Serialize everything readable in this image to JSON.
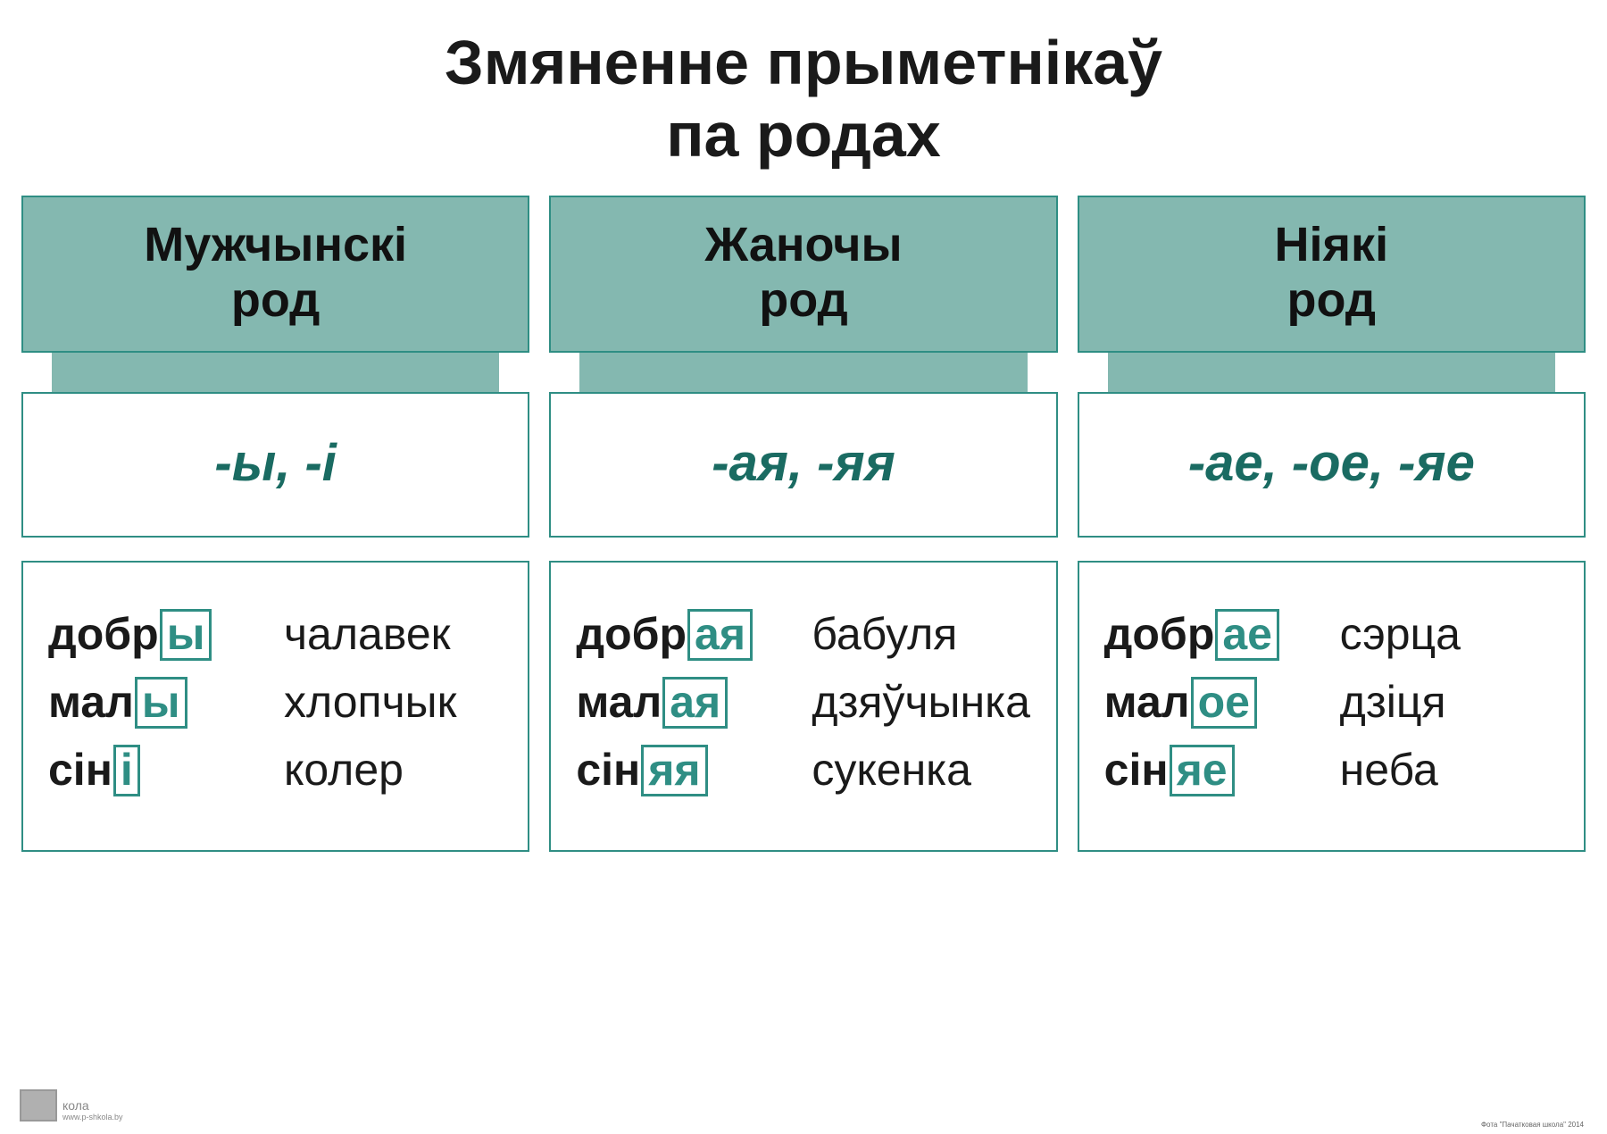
{
  "colors": {
    "accent": "#2f8e84",
    "header_bg": "#84b8b0",
    "endings_text": "#1a6b62",
    "text": "#1a1a1a",
    "background": "#ffffff"
  },
  "title_line1": "Змяненне прыметнікаў",
  "title_line2": "па родах",
  "columns": [
    {
      "header_line1": "Мужчынскі",
      "header_line2": "род",
      "endings": "-ы, -і",
      "examples": [
        {
          "stem": "добр",
          "suffix": "ы",
          "noun": "чалавек"
        },
        {
          "stem": "мал",
          "suffix": "ы",
          "noun": "хлопчык"
        },
        {
          "stem": "сін",
          "suffix": "і",
          "noun": "колер"
        }
      ]
    },
    {
      "header_line1": "Жаночы",
      "header_line2": "род",
      "endings": "-ая, -яя",
      "examples": [
        {
          "stem": "добр",
          "suffix": "ая",
          "noun": "бабуля"
        },
        {
          "stem": "мал",
          "suffix": "ая",
          "noun": "дзяўчынка"
        },
        {
          "stem": "сін",
          "suffix": "яя",
          "noun": "сукенка"
        }
      ]
    },
    {
      "header_line1": "Ніякі",
      "header_line2": "род",
      "endings": "-ае, -ое, -яе",
      "examples": [
        {
          "stem": "добр",
          "suffix": "ае",
          "noun": "сэрца"
        },
        {
          "stem": "мал",
          "suffix": "ое",
          "noun": "дзіця"
        },
        {
          "stem": "сін",
          "suffix": "яе",
          "noun": "неба"
        }
      ]
    }
  ],
  "footer": {
    "logo_label": "кола",
    "url": "www.p-shkola.by",
    "caption": "Змяненне прыметнікаў па родах",
    "right": "Фота \"Пачатковая школа\" 2014"
  },
  "typography": {
    "title_fontsize": 70,
    "header_fontsize": 54,
    "endings_fontsize": 58,
    "example_fontsize": 50
  }
}
